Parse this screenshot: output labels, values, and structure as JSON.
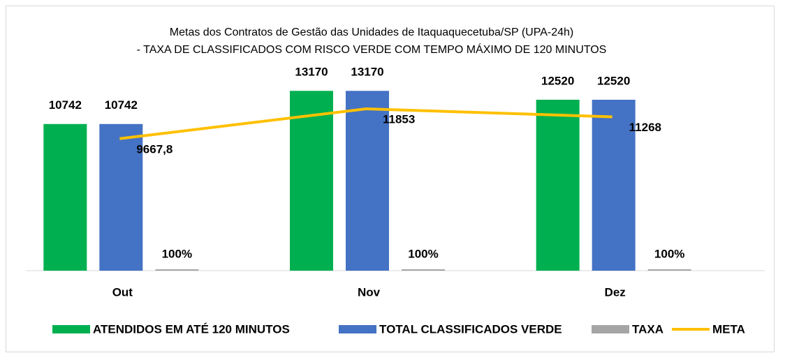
{
  "chart_data": {
    "type": "bar",
    "title": "Metas dos Contratos de Gestão das Unidades de Itaquaquecetuba/SP (UPA-24h)",
    "subtitle": "- TAXA DE CLASSIFICADOS COM RISCO VERDE COM TEMPO MÁXIMO DE 120 MINUTOS",
    "categories": [
      "Out",
      "Nov",
      "Dez"
    ],
    "ylim": [
      0,
      14000
    ],
    "series": [
      {
        "name": "ATENDIDOS EM ATÉ 120 MINUTOS",
        "type": "bar",
        "color": "#00b050",
        "values": [
          10742,
          13170,
          12520
        ]
      },
      {
        "name": "TOTAL CLASSIFICADOS VERDE",
        "type": "bar",
        "color": "#4472c4",
        "values": [
          10742,
          13170,
          12520
        ]
      },
      {
        "name": "TAXA",
        "type": "bar",
        "color": "#a5a5a5",
        "values": [
          100,
          100,
          100
        ],
        "value_labels": [
          "100%",
          "100%",
          "100%"
        ]
      },
      {
        "name": "META",
        "type": "line",
        "color": "#ffc000",
        "values": [
          9667.8,
          11853,
          11268
        ],
        "value_labels": [
          "9667,8",
          "11853",
          "11268"
        ]
      }
    ],
    "legend": "bottom"
  }
}
